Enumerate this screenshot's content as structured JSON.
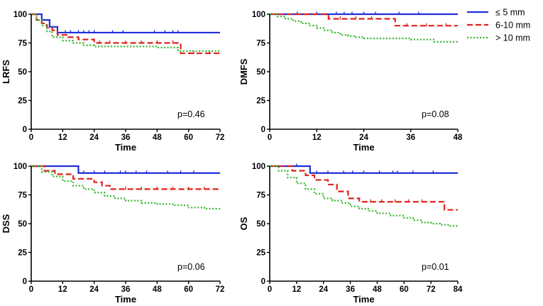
{
  "colors": {
    "le5": "#1f2fd6",
    "mid": "#e0211a",
    "gt10": "#36b52d",
    "axis": "#000000"
  },
  "legend": [
    {
      "key": "le5",
      "label": "≤ 5 mm"
    },
    {
      "key": "mid",
      "label": "6-10 mm"
    },
    {
      "key": "gt10",
      "label": "> 10 mm"
    }
  ],
  "chart_data": [
    {
      "type": "line",
      "step": true,
      "ylabel": "LRFS",
      "xlabel": "Time",
      "xlim": [
        0,
        72
      ],
      "xticks": [
        0,
        12,
        24,
        36,
        48,
        60,
        72
      ],
      "ylim": [
        0,
        100
      ],
      "yticks": [
        0,
        25,
        50,
        75,
        100
      ],
      "annotation": "p=0.46",
      "series": [
        {
          "name": "≤ 5 mm",
          "key": "le5",
          "x": [
            0,
            4,
            6,
            7,
            10,
            72
          ],
          "y": [
            100,
            95,
            95,
            89,
            84,
            84
          ],
          "censor": [
            13,
            15,
            18,
            20,
            22,
            24,
            31,
            35,
            47,
            51,
            54,
            56
          ]
        },
        {
          "name": "6-10 mm",
          "key": "mid",
          "x": [
            0,
            2,
            4,
            6,
            8,
            10,
            14,
            18,
            24,
            57,
            72
          ],
          "y": [
            100,
            95,
            92,
            88,
            86,
            82,
            80,
            78,
            75,
            66,
            66
          ],
          "censor": [
            26,
            30,
            36,
            42,
            48,
            54,
            62,
            68
          ]
        },
        {
          "name": "> 10 mm",
          "key": "gt10",
          "x": [
            0,
            2,
            4,
            6,
            8,
            12,
            16,
            20,
            24,
            36,
            48,
            56,
            72
          ],
          "y": [
            100,
            95,
            90,
            85,
            80,
            77,
            75,
            73,
            72,
            72,
            71,
            68,
            67
          ],
          "censor": []
        }
      ]
    },
    {
      "type": "line",
      "step": true,
      "ylabel": "DMFS",
      "xlabel": "Time",
      "xlim": [
        0,
        48
      ],
      "xticks": [
        0,
        12,
        24,
        36,
        48
      ],
      "ylim": [
        0,
        100
      ],
      "yticks": [
        0,
        25,
        50,
        75,
        100
      ],
      "annotation": "p=0.08",
      "series": [
        {
          "name": "≤ 5 mm",
          "key": "le5",
          "x": [
            0,
            48
          ],
          "y": [
            100,
            100
          ],
          "censor": [
            7,
            12,
            17,
            19,
            21,
            24,
            27,
            33,
            38
          ]
        },
        {
          "name": "6-10 mm",
          "key": "mid",
          "x": [
            0,
            15,
            32,
            48
          ],
          "y": [
            100,
            96,
            90,
            90
          ],
          "censor": [
            18,
            22,
            26,
            35,
            40,
            45
          ]
        },
        {
          "name": "> 10 mm",
          "key": "gt10",
          "x": [
            0,
            2,
            4,
            6,
            8,
            10,
            12,
            14,
            16,
            18,
            20,
            22,
            24,
            30,
            36,
            40,
            42,
            48
          ],
          "y": [
            100,
            98,
            96,
            94,
            92,
            90,
            88,
            86,
            84,
            82,
            81,
            80,
            79,
            79,
            78,
            78,
            76,
            76
          ],
          "censor": []
        }
      ]
    },
    {
      "type": "line",
      "step": true,
      "ylabel": "DSS",
      "xlabel": "Time",
      "xlim": [
        0,
        72
      ],
      "xticks": [
        0,
        12,
        24,
        36,
        48,
        60,
        72
      ],
      "ylim": [
        0,
        100
      ],
      "yticks": [
        0,
        25,
        50,
        75,
        100
      ],
      "annotation": "p=0.06",
      "series": [
        {
          "name": "≤ 5 mm",
          "key": "le5",
          "x": [
            0,
            18,
            72
          ],
          "y": [
            100,
            94,
            94
          ],
          "censor": [
            20,
            24,
            28,
            34,
            36,
            40,
            44,
            52,
            57,
            62
          ]
        },
        {
          "name": "6-10 mm",
          "key": "mid",
          "x": [
            0,
            5,
            9,
            16,
            24,
            27,
            30,
            72
          ],
          "y": [
            100,
            96,
            93,
            89,
            86,
            83,
            80,
            80
          ],
          "censor": [
            36,
            42,
            48,
            54,
            60,
            66
          ]
        },
        {
          "name": "> 10 mm",
          "key": "gt10",
          "x": [
            0,
            4,
            8,
            12,
            16,
            20,
            24,
            28,
            32,
            36,
            42,
            48,
            54,
            60,
            66,
            72
          ],
          "y": [
            100,
            95,
            91,
            87,
            83,
            80,
            77,
            74,
            72,
            70,
            68,
            67,
            66,
            64,
            63,
            63
          ],
          "censor": []
        }
      ]
    },
    {
      "type": "line",
      "step": true,
      "ylabel": "OS",
      "xlabel": "Time",
      "xlim": [
        0,
        84
      ],
      "xticks": [
        0,
        12,
        24,
        36,
        48,
        60,
        72,
        84
      ],
      "ylim": [
        0,
        100
      ],
      "yticks": [
        0,
        25,
        50,
        75,
        100
      ],
      "annotation": "p=0.01",
      "series": [
        {
          "name": "≤ 5 mm",
          "key": "le5",
          "x": [
            0,
            18,
            84
          ],
          "y": [
            100,
            94,
            94
          ],
          "censor": [
            12,
            21,
            26,
            33,
            37,
            42,
            49,
            55,
            57,
            64,
            73
          ]
        },
        {
          "name": "6-10 mm",
          "key": "mid",
          "x": [
            0,
            10,
            16,
            20,
            26,
            30,
            35,
            40,
            76,
            78,
            84
          ],
          "y": [
            100,
            96,
            92,
            88,
            84,
            78,
            72,
            69,
            69,
            62,
            62
          ],
          "censor": [
            45,
            50,
            56,
            62,
            68
          ]
        },
        {
          "name": "> 10 mm",
          "key": "gt10",
          "x": [
            0,
            4,
            8,
            12,
            16,
            20,
            24,
            28,
            32,
            36,
            40,
            44,
            48,
            54,
            60,
            64,
            68,
            72,
            76,
            80,
            84
          ],
          "y": [
            100,
            96,
            90,
            85,
            80,
            76,
            72,
            70,
            68,
            65,
            63,
            61,
            59,
            57,
            55,
            53,
            51,
            50,
            49,
            48,
            48
          ],
          "censor": []
        }
      ]
    }
  ]
}
